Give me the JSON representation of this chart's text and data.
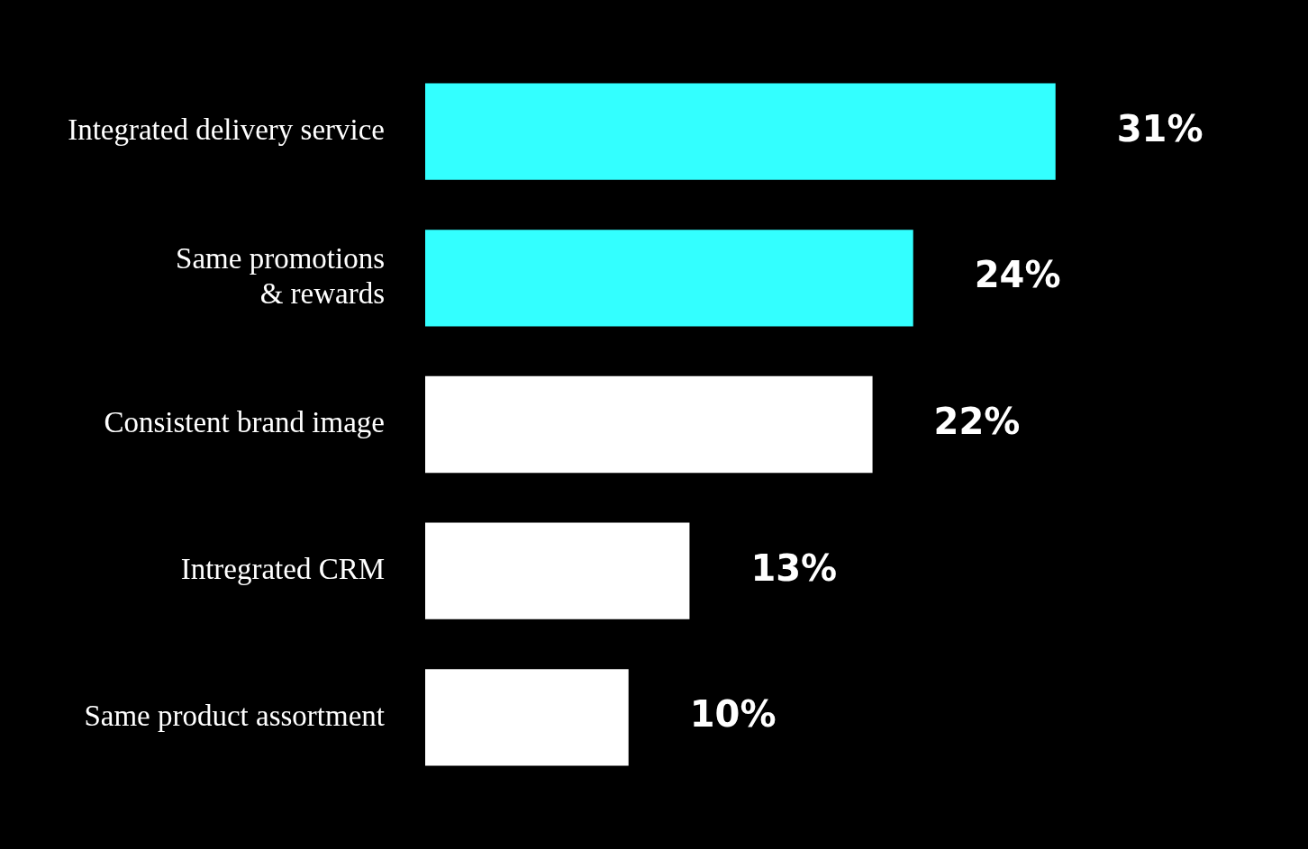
{
  "chart_data": {
    "type": "bar",
    "orientation": "horizontal",
    "categories": [
      "Integrated delivery service",
      "Same promotions\n& rewards",
      "Consistent brand image",
      "Intregrated CRM",
      "Same product assortment"
    ],
    "values": [
      31,
      24,
      22,
      13,
      10
    ],
    "colors": [
      "#33ffff",
      "#33ffff",
      "#ffffff",
      "#ffffff",
      "#ffffff"
    ],
    "value_labels": [
      "31%",
      "24%",
      "22%",
      "13%",
      "10%"
    ],
    "legend": false
  }
}
